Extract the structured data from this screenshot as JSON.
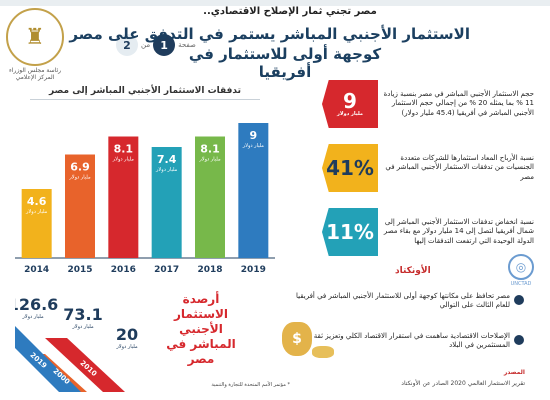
{
  "logo": {
    "text": "رئاسة مجلس الوزراء\nالمركز الإعلامي"
  },
  "header": {
    "subtitle": "مصر تجني ثمار الإصلاح الاقتصادي..",
    "title_line1": "الاستثمار الأجنبي المباشر يستمر في التدفق على مصر",
    "title_line2": "كوجهة أولى للاستثمار في أفريقيا",
    "page_label": "صفحة",
    "page_current": "1",
    "page_of": "من",
    "page_total": "2"
  },
  "chart_data": {
    "type": "bar",
    "title": "تدفقات الاستثمار الأجنبي المباشر إلى مصر",
    "categories": [
      "2014",
      "2015",
      "2016",
      "2017",
      "2018",
      "2019"
    ],
    "values": [
      4.6,
      6.9,
      8.1,
      7.4,
      8.1,
      9
    ],
    "value_labels": [
      "4.6",
      "6.9",
      "8.1",
      "7.4",
      "8.1",
      "9"
    ],
    "unit": "مليار دولار",
    "colors": [
      "#f2b21c",
      "#e8632b",
      "#d6282d",
      "#23a1b7",
      "#77b84a",
      "#2e7bbf"
    ],
    "ylim": [
      0,
      10
    ]
  },
  "stats": [
    {
      "value": "9",
      "unit": "مليار دولار",
      "color": "#d6282d",
      "text": "حجم الاستثمار الأجنبي المباشر في مصر بنسبة زيادة 11 % بما يمثله 20 % من إجمالي حجم الاستثمار الأجنبي المباشر في أفريقيا (45.4 مليار دولار)"
    },
    {
      "value": "41%",
      "unit": "",
      "color": "#f2b21c",
      "text": "نسبة الأرباح المعاد استثمارها للشركات متعددة الجنسيات من تدفقات الاستثمار الأجنبي المباشر في مصر"
    },
    {
      "value": "11%",
      "unit": "",
      "color": "#23a1b7",
      "text": "نسبة انخفاض تدفقات الاستثمار الأجنبي المباشر إلى شمال أفريقيا لتصل إلى 14 مليار دولار مع بقاء مصر الدولة الوحيدة التي ارتفعت التدفقات إليها"
    }
  ],
  "unctad": {
    "label": "الأونكتاد",
    "caption": "UNCTAD"
  },
  "bullets": [
    "مصر تحافظ على مكانتها كوجهة أولى للاستثمار الأجنبي المباشر في أفريقيا للعام الثالث على التوالي",
    "الإصلاحات الاقتصادية ساهمت في استقرار الاقتصاد الكلي وتعزيز ثقة المستثمرين في البلاد"
  ],
  "source": {
    "label": "المصدر",
    "text": "تقرير الاستثمار العالمي 2020 الصادر عن الأونكتاد"
  },
  "balances": {
    "label": "أرصدة الاستثمار الأجنبي المباشر في مصر",
    "items": [
      {
        "year": "2000",
        "value": "20",
        "unit": "مليار دولار"
      },
      {
        "year": "2010",
        "value": "73.1",
        "unit": "مليار دولار"
      },
      {
        "year": "2019",
        "value": "126.6",
        "unit": "مليار دولار"
      }
    ],
    "footnote": "* مؤتمر الأمم المتحدة للتجارة والتنمية"
  }
}
